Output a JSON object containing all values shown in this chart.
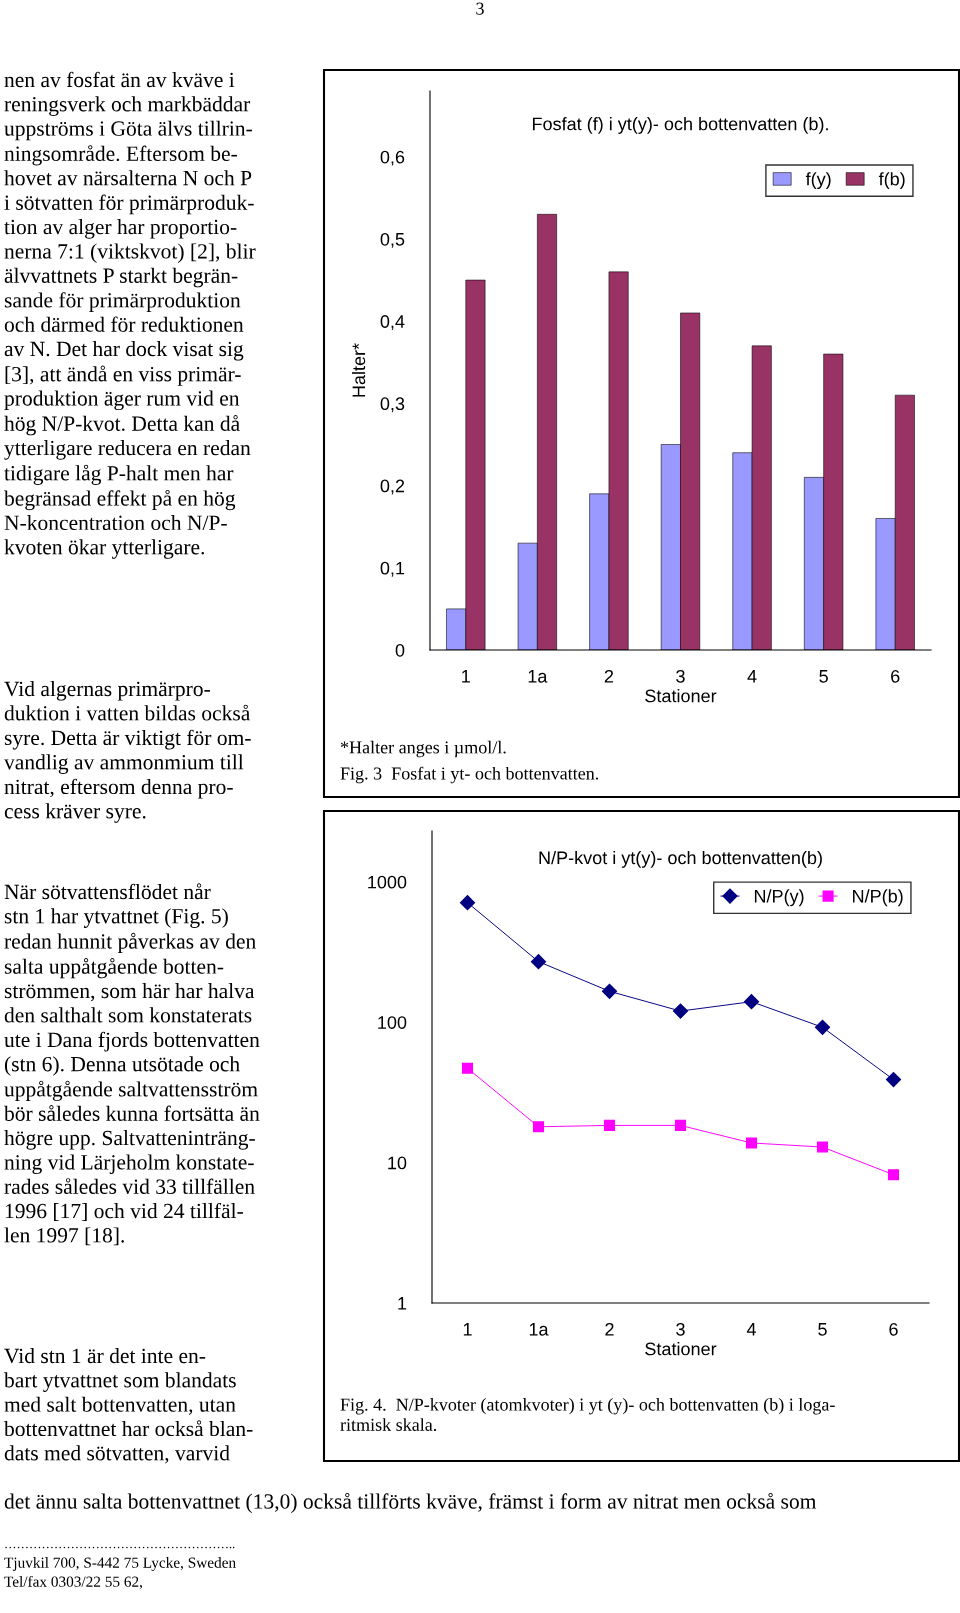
{
  "chart_data": [
    {
      "type": "other",
      "annotations": [
        "3",
        "nen av fosfat än av kväve i\nreningsverk och markbäddar\nuppströms i Göta älvs tillrin-\nningsområde. Eftersom be-\nhovet av närsalterna N och P\ni sötvatten för primärproduk-\ntion av alger har proportio-\nnerna 7:1 (viktskvot) [2], blir\nälvvattnets P starkt begrän-\nsande för primärproduktion\noch därmed för reduktionen\nav N. Det har dock visat sig\n[3], att ändå en viss primär-\nproduktion äger rum vid en\nhög N/P-kvot. Detta kan då\nytterligare reducera en redan\ntidigare låg P-halt men har\nbegränsad effekt på en hög\nN-koncentration och N/P-\nkvoten ökar ytterligare.",
        "Vid algernas primärpro-\nduktion i vatten bildas också\nsyre. Detta är viktigt för om-\nvandlig av ammonmium till\nnitrat, eftersom denna pro-\ncess kräver syre.",
        "När sötvattensflödet når\nstn 1 har ytvattnet (Fig. 5)\nredan hunnit påverkas av den\nsalta uppåtgående botten-\nströmmen, som här har halva\nden salthalt som konstaterats\nute i Dana fjords bottenvatten\n(stn 6). Denna utsötade och\nuppåtgående saltvattensström\nbör således kunna fortsätta än\nhögre upp. Saltvatteninträng-\nning vid Lärjeholm konstate-\nrades således vid 33 tillfällen\n1996 [17] och vid 24 tillfäl-\nlen 1997 [18].",
        "Vid stn 1 är det inte en-\nbart ytvattnet som blandats\nmed salt bottenvatten, utan\nbottenvattnet har också blan-\ndats med sötvatten, varvid",
        "det ännu salta bottenvattnet (13,0) också tillförts kväve, främst i form av nitrat men också som",
        "………………………………………………..",
        "Tjuvkil 700, S-442 75 Lycke, Sweden",
        "Tel/fax 0303/22 55 62,"
      ]
    },
    {
      "type": "bar",
      "title": "Fosfat (f) i yt(y)- och bottenvatten (b).",
      "xlabel": "Stationer",
      "ylabel": "Halter*",
      "categories": [
        "1",
        "1a",
        "2",
        "3",
        "4",
        "5",
        "6"
      ],
      "series": [
        {
          "name": "f(y)",
          "color": "#9999ff",
          "values": [
            0.05,
            0.13,
            0.19,
            0.25,
            0.24,
            0.21,
            0.16
          ]
        },
        {
          "name": "f(b)",
          "color": "#993366",
          "values": [
            0.45,
            0.53,
            0.46,
            0.41,
            0.37,
            0.36,
            0.31
          ]
        }
      ],
      "ylim": [
        0,
        0.68
      ],
      "yticks": [
        0,
        {
          "value": 0.1,
          "label": "0,1"
        },
        {
          "value": 0.2,
          "label": "0,2"
        },
        {
          "value": 0.3,
          "label": "0,3"
        },
        {
          "value": 0.4,
          "label": "0,4"
        },
        {
          "value": 0.5,
          "label": "0,5"
        },
        {
          "value": 0.6,
          "label": "0,6"
        }
      ],
      "legend": "top right",
      "annotations": [
        "*Halter anges i µmol/l.",
        "Fig. 3  Fosfat i yt- och bottenvatten."
      ]
    },
    {
      "type": "line",
      "title": "N/P-kvot i yt(y)- och bottenvatten(b)",
      "xlabel": "Stationer",
      "categories": [
        "1",
        "1a",
        "2",
        "3",
        "4",
        "5",
        "6"
      ],
      "series": [
        {
          "name": "N/P(y)",
          "color": "#000080",
          "marker": "diamond",
          "values": [
            710,
            270,
            166,
            120,
            140,
            92,
            39
          ]
        },
        {
          "name": "N/P(b)",
          "color": "#ff00ff",
          "marker": "square",
          "values": [
            47,
            18,
            18.4,
            18.4,
            13.8,
            12.9,
            8.2
          ]
        }
      ],
      "log": true,
      "ylim": [
        1,
        2300
      ],
      "yticks": [
        1,
        10,
        100,
        1000
      ],
      "legend": "top right",
      "annotations": [
        "Fig. 4.  N/P-kvoter (atomkvoter) i yt (y)- och bottenvatten (b) i loga-\nritmisk skala."
      ]
    }
  ]
}
